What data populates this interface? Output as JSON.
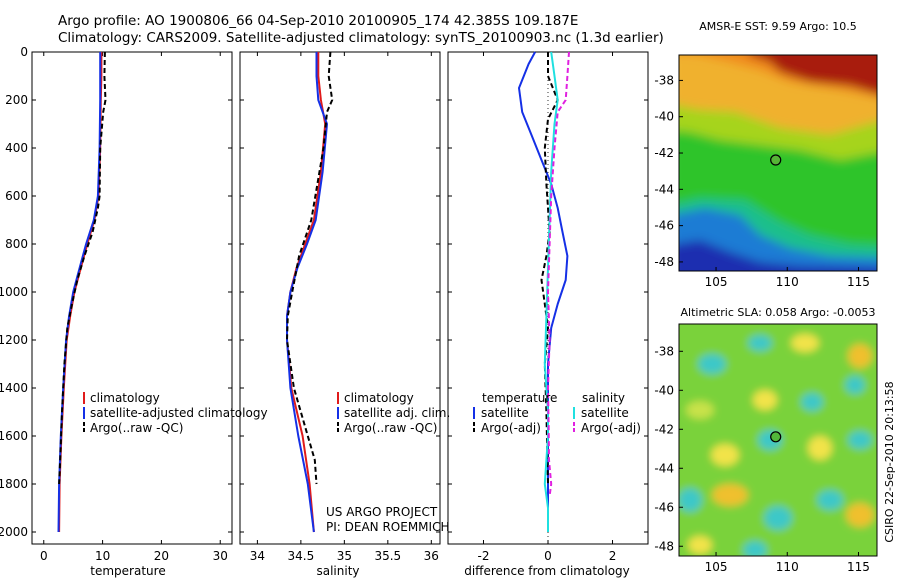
{
  "header": {
    "title_line1": "Argo profile: AO 1900806_66 04-Sep-2010 20100905_174 42.385S 109.187E",
    "title_line2": "Climatology: CARS2009. Satellite-adjusted climatology: synTS_20100903.nc (1.3d earlier)"
  },
  "colors": {
    "red": "#e01b1b",
    "blue": "#1530e6",
    "black": "#000000",
    "cyan": "#1fe0e0",
    "magenta": "#e020e0"
  },
  "chart_data": [
    {
      "type": "line",
      "xlabel": "temperature",
      "ylim": [
        0,
        2050
      ],
      "xlim": [
        -2,
        32
      ],
      "yticks": [
        "0",
        "200",
        "400",
        "600",
        "800",
        "1000",
        "1200",
        "1400",
        "1600",
        "1800",
        "2000"
      ],
      "xticks": [
        "0",
        "10",
        "20",
        "30"
      ],
      "legend": {
        "position": "bottom-right",
        "items": [
          "climatology",
          "satellite-adjusted climatology",
          "Argo(..raw -QC)"
        ]
      },
      "series": [
        {
          "name": "climatology",
          "color": "red",
          "dash": false,
          "x": [
            9.8,
            9.8,
            9.7,
            9.6,
            9.3,
            8.6,
            7.4,
            6.3,
            5.2,
            4.5,
            3.9,
            3.4,
            3.0,
            2.7,
            2.6
          ],
          "y": [
            0,
            100,
            200,
            400,
            600,
            700,
            800,
            900,
            1000,
            1100,
            1200,
            1400,
            1600,
            1800,
            2000
          ]
        },
        {
          "name": "satellite-adjusted climatology",
          "color": "blue",
          "dash": false,
          "x": [
            9.6,
            9.6,
            9.6,
            9.5,
            9.2,
            8.5,
            7.2,
            6.1,
            5.0,
            4.3,
            3.8,
            3.3,
            2.9,
            2.6,
            2.5
          ],
          "y": [
            0,
            100,
            200,
            400,
            600,
            700,
            800,
            900,
            1000,
            1100,
            1200,
            1400,
            1600,
            1800,
            2000
          ]
        },
        {
          "name": "Argo(..raw -QC)",
          "color": "black",
          "dash": true,
          "x": [
            10.4,
            10.3,
            10.5,
            10.1,
            9.6,
            9.5,
            9.2,
            8.3,
            6.9,
            5.7,
            4.8,
            4.0,
            3.5,
            3.1,
            2.8,
            2.6
          ],
          "y": [
            0,
            100,
            200,
            250,
            400,
            600,
            650,
            750,
            850,
            950,
            1050,
            1150,
            1300,
            1500,
            1700,
            1800
          ]
        }
      ]
    },
    {
      "type": "line",
      "xlabel": "salinity",
      "ylim": [
        0,
        2050
      ],
      "xlim": [
        33.8,
        36.1
      ],
      "xticks": [
        "34",
        "34.5",
        "35",
        "35.5",
        "36"
      ],
      "legend": {
        "position": "bottom-right",
        "items": [
          "climatology",
          "satellite adj. clim.",
          "Argo(..raw -QC)"
        ]
      },
      "annotation": [
        "US ARGO PROJECT",
        "PI: DEAN ROEMMICH"
      ],
      "series": [
        {
          "name": "climatology",
          "color": "red",
          "dash": false,
          "x": [
            34.7,
            34.7,
            34.73,
            34.78,
            34.73,
            34.65,
            34.55,
            34.45,
            34.38,
            34.34,
            34.34,
            34.39,
            34.52,
            34.6,
            34.65
          ],
          "y": [
            0,
            100,
            200,
            300,
            500,
            700,
            800,
            900,
            1000,
            1100,
            1200,
            1400,
            1600,
            1800,
            2000
          ]
        },
        {
          "name": "satellite adj. clim.",
          "color": "blue",
          "dash": false,
          "x": [
            34.68,
            34.68,
            34.7,
            34.8,
            34.75,
            34.67,
            34.57,
            34.46,
            34.38,
            34.34,
            34.34,
            34.38,
            34.47,
            34.58,
            34.65
          ],
          "y": [
            0,
            100,
            200,
            300,
            500,
            700,
            800,
            900,
            1000,
            1100,
            1200,
            1400,
            1600,
            1800,
            2000
          ]
        },
        {
          "name": "Argo(..raw -QC)",
          "color": "black",
          "dash": true,
          "x": [
            34.84,
            34.82,
            34.86,
            34.8,
            34.76,
            34.62,
            34.48,
            34.4,
            34.35,
            34.34,
            34.42,
            34.58,
            34.66,
            34.68
          ],
          "y": [
            0,
            100,
            200,
            250,
            400,
            700,
            850,
            1000,
            1100,
            1200,
            1400,
            1600,
            1700,
            1800
          ]
        }
      ]
    },
    {
      "type": "line",
      "xlabel": "difference from climatology",
      "ylim": [
        0,
        2050
      ],
      "xlim": [
        -3.1,
        3.1
      ],
      "xticks": [
        "-2",
        "0",
        "2"
      ],
      "legend": {
        "position": "bottom-right",
        "headers": [
          "temperature",
          "salinity"
        ],
        "items": [
          "satellite",
          "Argo(-adj)",
          "satellite",
          "Argo(-adj)"
        ]
      },
      "series": [
        {
          "name": "temperature satellite",
          "color": "blue",
          "dash": false,
          "x": [
            -0.4,
            -0.6,
            -0.9,
            -0.8,
            -0.5,
            -0.2,
            0.1,
            0.3,
            0.45,
            0.6,
            0.55,
            0.3,
            0.1,
            0.0,
            0.0,
            0.0
          ],
          "y": [
            0,
            50,
            150,
            250,
            350,
            450,
            550,
            650,
            750,
            850,
            950,
            1050,
            1150,
            1300,
            1600,
            2000
          ]
        },
        {
          "name": "temperature Argo(-adj)",
          "color": "black",
          "dash": true,
          "x": [
            0.0,
            0.0,
            0.3,
            0.0,
            -0.1,
            -0.05,
            0.0,
            0.05,
            -0.05,
            -0.2,
            -0.1,
            0.0,
            -0.1,
            -0.05,
            0.0
          ],
          "y": [
            0,
            100,
            200,
            280,
            400,
            550,
            650,
            750,
            850,
            950,
            1050,
            1150,
            1300,
            1500,
            1800
          ]
        },
        {
          "name": "salinity satellite",
          "color": "cyan",
          "dash": false,
          "x": [
            0.1,
            0.2,
            0.3,
            0.2,
            0.1,
            0.05,
            0.0,
            -0.05,
            -0.1,
            -0.05,
            0.0,
            0.0,
            -0.1,
            0.0,
            0.0
          ],
          "y": [
            0,
            100,
            200,
            300,
            500,
            700,
            900,
            1100,
            1300,
            1400,
            1500,
            1600,
            1800,
            1900,
            2000
          ]
        },
        {
          "name": "salinity Argo(-adj)",
          "color": "magenta",
          "dash": true,
          "x": [
            0.65,
            0.6,
            0.55,
            0.3,
            0.2,
            0.1,
            0.05,
            0.0,
            0.05,
            0.0,
            0.02,
            0.03,
            0.1,
            0.05
          ],
          "y": [
            0,
            100,
            200,
            250,
            400,
            600,
            800,
            1000,
            1200,
            1400,
            1550,
            1700,
            1800,
            1850
          ]
        }
      ]
    },
    {
      "type": "heatmap",
      "title": "AMSR-E SST: 9.59 Argo: 10.5",
      "xlim": [
        102.4,
        116.3
      ],
      "ylim": [
        -48.5,
        -36.6
      ],
      "xticks": [
        "105",
        "110",
        "115"
      ],
      "yticks": [
        "-38",
        "-40",
        "-42",
        "-44",
        "-46",
        "-48"
      ],
      "marker": [
        109.187,
        -42.385
      ]
    },
    {
      "type": "heatmap",
      "title": "Altimetric SLA: 0.058 Argo: -0.0053",
      "xlim": [
        102.4,
        116.3
      ],
      "ylim": [
        -48.5,
        -36.6
      ],
      "xticks": [
        "105",
        "110",
        "115"
      ],
      "yticks": [
        "-38",
        "-40",
        "-42",
        "-44",
        "-46",
        "-48"
      ],
      "marker": [
        109.187,
        -42.385
      ]
    }
  ],
  "side_label": "CSIRO 22-Sep-2010 20:13:58"
}
